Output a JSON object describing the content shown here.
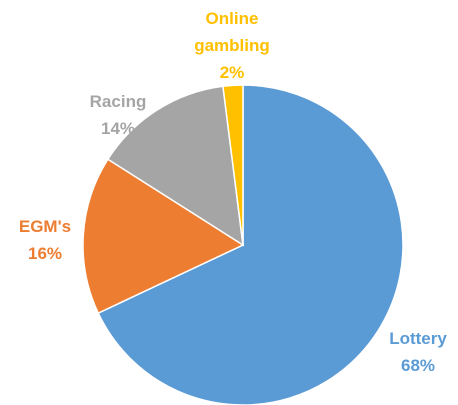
{
  "chart_data": {
    "type": "pie",
    "categories": [
      "Lottery",
      "EGM's",
      "Racing",
      "Online gambling"
    ],
    "values": [
      68,
      16,
      14,
      2
    ],
    "value_labels": [
      "68%",
      "16%",
      "14%",
      "2%"
    ],
    "colors": [
      "#5b9bd5",
      "#ed7d31",
      "#a5a5a5",
      "#ffc000"
    ]
  }
}
